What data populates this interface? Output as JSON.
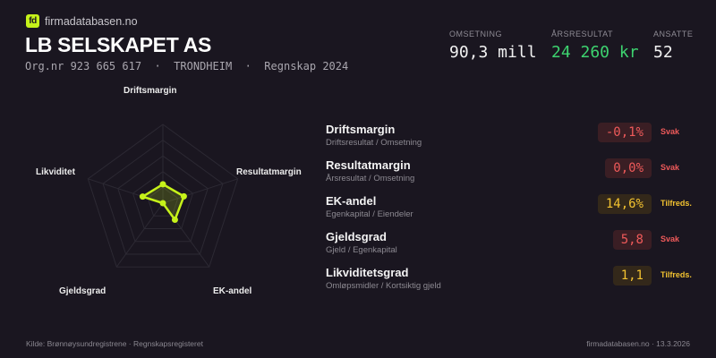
{
  "brand": {
    "logo": "fd",
    "site": "firmadatabasen.no"
  },
  "company": {
    "name": "LB SELSKAPET AS",
    "subtitle": "Org.nr 923 665 617  ·  TRONDHEIM  ·  Regnskap 2024"
  },
  "kpis": [
    {
      "label": "OMSETNING",
      "value": "90,3 mill",
      "color": "#f2f2f2"
    },
    {
      "label": "ÅRSRESULTAT",
      "value": "24 260 kr",
      "color": "#3dd36f"
    },
    {
      "label": "ANSATTE",
      "value": "52",
      "color": "#f2f2f2"
    }
  ],
  "radar": {
    "axes": [
      "Driftsmargin",
      "Resultatmargin",
      "EK-andel",
      "Gjeldsgrad",
      "Likviditet"
    ],
    "values": [
      0.24,
      0.28,
      0.26,
      0.0,
      0.27
    ],
    "color": "#c6f21a"
  },
  "metrics": [
    {
      "name": "Driftsmargin",
      "formula": "Driftsresultat / Omsetning",
      "value": "-0,1%",
      "status": "Svak",
      "level": "weak"
    },
    {
      "name": "Resultatmargin",
      "formula": "Årsresultat / Omsetning",
      "value": "0,0%",
      "status": "Svak",
      "level": "weak"
    },
    {
      "name": "EK-andel",
      "formula": "Egenkapital / Eiendeler",
      "value": "14,6%",
      "status": "Tilfreds.",
      "level": "ok"
    },
    {
      "name": "Gjeldsgrad",
      "formula": "Gjeld / Egenkapital",
      "value": "5,8",
      "status": "Svak",
      "level": "weak"
    },
    {
      "name": "Likviditetsgrad",
      "formula": "Omløpsmidler / Kortsiktig gjeld",
      "value": "1,1",
      "status": "Tilfreds.",
      "level": "ok"
    }
  ],
  "colors": {
    "weak": "#ef5a5a",
    "weak_bg": "#3a1e24",
    "ok": "#f2c230",
    "ok_bg": "#33281a"
  },
  "footer": {
    "source": "Kilde: Brønnøysundregistrene · Regnskapsregisteret",
    "site_date": "firmadatabasen.no · 13.3.2026"
  }
}
